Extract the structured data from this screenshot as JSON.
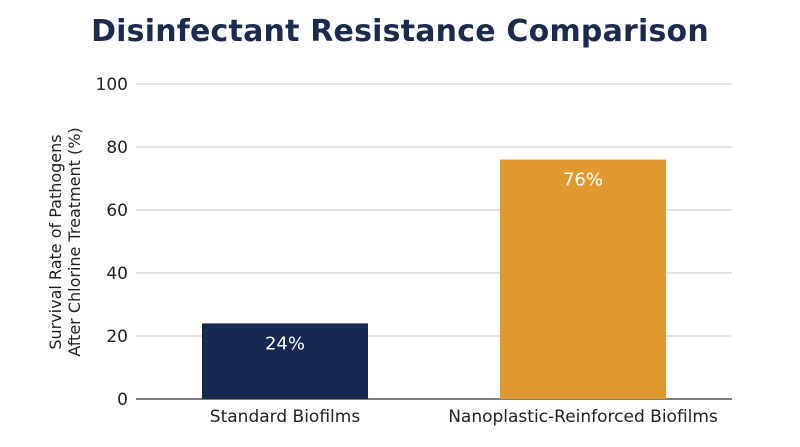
{
  "chart_data": {
    "type": "bar",
    "title": "Disinfectant Resistance Comparison",
    "xlabel": "",
    "ylabel": "Survival Rate of Pathogens\nAfter Chlorine Treatment (%)",
    "categories": [
      "Standard Biofilms",
      "Nanoplastic-Reinforced Biofilms"
    ],
    "values": [
      24,
      76
    ],
    "data_labels": [
      "24%",
      "76%"
    ],
    "colors": [
      "#16284f",
      "#e0992e"
    ],
    "ylim": [
      0,
      100
    ],
    "yticks": [
      0,
      20,
      40,
      60,
      80,
      100
    ],
    "grid": true,
    "legend": "none"
  }
}
